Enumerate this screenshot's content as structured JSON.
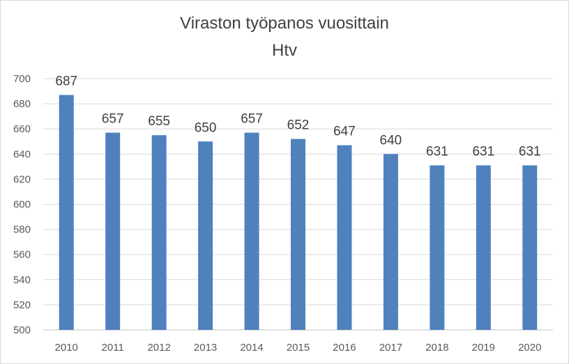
{
  "chart_data": {
    "type": "bar",
    "title": "Viraston työpanos vuosittain",
    "subtitle": "Htv",
    "xlabel": "",
    "ylabel": "",
    "categories": [
      "2010",
      "2011",
      "2012",
      "2013",
      "2014",
      "2015",
      "2016",
      "2017",
      "2018",
      "2019",
      "2020"
    ],
    "values": [
      687,
      657,
      655,
      650,
      657,
      652,
      647,
      640,
      631,
      631,
      631
    ],
    "ylim": [
      500,
      700
    ],
    "yticks": [
      500,
      520,
      540,
      560,
      580,
      600,
      620,
      640,
      660,
      680,
      700
    ],
    "grid": true,
    "legend": "none",
    "bar_color": "#4f81bd",
    "data_labels": true
  }
}
